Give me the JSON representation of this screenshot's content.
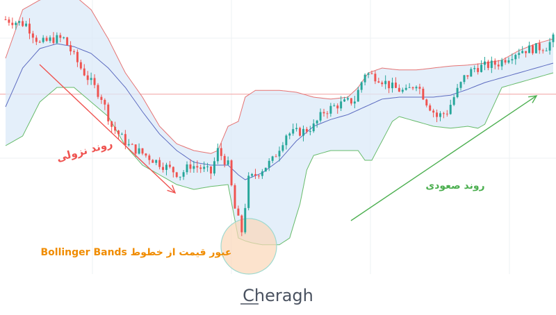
{
  "chart_data": {
    "type": "candlestick",
    "title": "",
    "xlabel": "",
    "ylabel": "",
    "grid": true,
    "ylim": [
      -245,
      30
    ],
    "colors": {
      "bullish": "#26a69a",
      "bearish": "#ef5350",
      "upper_band": "#e57373",
      "middle_band": "#5c6bc0",
      "lower_band": "#66bb6a",
      "band_fill": "#dbeaf8",
      "horizontal_line": "#f2a0a0",
      "downtrend_arrow": "#ef5350",
      "uptrend_arrow": "#4caf50",
      "annotation_text": "#f08c00",
      "circle_fill": "#fbd7b8",
      "circle_stroke": "#9fd9cf"
    },
    "horizontal_line_value": -67,
    "anchors": [
      [
        0,
        10
      ],
      [
        6,
        5
      ],
      [
        10,
        -15
      ],
      [
        14,
        -10
      ],
      [
        17,
        -10
      ],
      [
        22,
        -40
      ],
      [
        28,
        -70
      ],
      [
        31,
        -100
      ],
      [
        36,
        -120
      ],
      [
        41,
        -130
      ],
      [
        46,
        -140
      ],
      [
        51,
        -150
      ],
      [
        54,
        -140
      ],
      [
        57,
        -143
      ],
      [
        60,
        -148
      ],
      [
        62,
        -125
      ],
      [
        65,
        -140
      ],
      [
        67,
        -185
      ],
      [
        69,
        -208
      ],
      [
        71,
        -155
      ],
      [
        73,
        -150
      ],
      [
        78,
        -135
      ],
      [
        82,
        -108
      ],
      [
        87,
        -105
      ],
      [
        90,
        -100
      ],
      [
        93,
        -85
      ],
      [
        97,
        -78
      ],
      [
        102,
        -73
      ],
      [
        105,
        -45
      ],
      [
        109,
        -50
      ],
      [
        113,
        -60
      ],
      [
        117,
        -65
      ],
      [
        120,
        -55
      ],
      [
        123,
        -75
      ],
      [
        126,
        -90
      ],
      [
        129,
        -85
      ],
      [
        131,
        -70
      ],
      [
        134,
        -50
      ],
      [
        137,
        -40
      ],
      [
        140,
        -38
      ],
      [
        144,
        -35
      ],
      [
        147,
        -28
      ],
      [
        150,
        -22
      ],
      [
        154,
        -20
      ],
      [
        158,
        -18
      ],
      [
        160,
        -10
      ]
    ],
    "candle_count": 161,
    "upper_band": [
      [
        0,
        -30
      ],
      [
        5,
        20
      ],
      [
        10,
        30
      ],
      [
        15,
        35
      ],
      [
        20,
        35
      ],
      [
        25,
        20
      ],
      [
        30,
        -10
      ],
      [
        35,
        -45
      ],
      [
        40,
        -70
      ],
      [
        45,
        -100
      ],
      [
        50,
        -118
      ],
      [
        55,
        -125
      ],
      [
        60,
        -128
      ],
      [
        62,
        -125
      ],
      [
        65,
        -100
      ],
      [
        68,
        -95
      ],
      [
        70,
        -70
      ],
      [
        73,
        -63
      ],
      [
        75,
        -63
      ],
      [
        80,
        -63
      ],
      [
        85,
        -65
      ],
      [
        90,
        -70
      ],
      [
        95,
        -72
      ],
      [
        100,
        -70
      ],
      [
        103,
        -60
      ],
      [
        106,
        -45
      ],
      [
        110,
        -40
      ],
      [
        115,
        -42
      ],
      [
        120,
        -42
      ],
      [
        125,
        -40
      ],
      [
        130,
        -38
      ],
      [
        135,
        -37
      ],
      [
        140,
        -35
      ],
      [
        145,
        -32
      ],
      [
        150,
        -22
      ],
      [
        155,
        -15
      ],
      [
        160,
        -10
      ]
    ],
    "middle_band": [
      [
        0,
        -80
      ],
      [
        5,
        -40
      ],
      [
        10,
        -20
      ],
      [
        15,
        -15
      ],
      [
        20,
        -18
      ],
      [
        25,
        -25
      ],
      [
        30,
        -40
      ],
      [
        35,
        -60
      ],
      [
        40,
        -85
      ],
      [
        45,
        -108
      ],
      [
        50,
        -125
      ],
      [
        55,
        -137
      ],
      [
        60,
        -140
      ],
      [
        65,
        -140
      ],
      [
        68,
        -150
      ],
      [
        70,
        -155
      ],
      [
        75,
        -148
      ],
      [
        80,
        -135
      ],
      [
        85,
        -115
      ],
      [
        90,
        -100
      ],
      [
        95,
        -93
      ],
      [
        100,
        -88
      ],
      [
        105,
        -80
      ],
      [
        110,
        -72
      ],
      [
        115,
        -70
      ],
      [
        120,
        -70
      ],
      [
        125,
        -70
      ],
      [
        130,
        -68
      ],
      [
        135,
        -62
      ],
      [
        140,
        -55
      ],
      [
        145,
        -50
      ],
      [
        150,
        -45
      ],
      [
        155,
        -40
      ],
      [
        160,
        -35
      ]
    ],
    "lower_band": [
      [
        0,
        -120
      ],
      [
        5,
        -110
      ],
      [
        10,
        -75
      ],
      [
        15,
        -60
      ],
      [
        20,
        -60
      ],
      [
        25,
        -75
      ],
      [
        30,
        -90
      ],
      [
        35,
        -120
      ],
      [
        40,
        -140
      ],
      [
        45,
        -150
      ],
      [
        50,
        -160
      ],
      [
        55,
        -165
      ],
      [
        60,
        -162
      ],
      [
        65,
        -160
      ],
      [
        68,
        -215
      ],
      [
        70,
        -218
      ],
      [
        72,
        -220
      ],
      [
        75,
        -222
      ],
      [
        78,
        -222
      ],
      [
        80,
        -222
      ],
      [
        83,
        -215
      ],
      [
        86,
        -180
      ],
      [
        88,
        -145
      ],
      [
        90,
        -130
      ],
      [
        95,
        -125
      ],
      [
        100,
        -125
      ],
      [
        103,
        -125
      ],
      [
        105,
        -135
      ],
      [
        107,
        -135
      ],
      [
        110,
        -115
      ],
      [
        113,
        -95
      ],
      [
        115,
        -90
      ],
      [
        120,
        -95
      ],
      [
        125,
        -100
      ],
      [
        130,
        -102
      ],
      [
        135,
        -100
      ],
      [
        138,
        -102
      ],
      [
        140,
        -98
      ],
      [
        145,
        -60
      ],
      [
        150,
        -55
      ],
      [
        155,
        -50
      ],
      [
        160,
        -45
      ]
    ],
    "annotations": [
      {
        "text": "روند نزولی",
        "color": "#ef5350"
      },
      {
        "text": "روند صعودی",
        "color": "#4caf50"
      },
      {
        "text": "عبور قیمت از خطوط Bollinger Bands",
        "color": "#f08c00"
      }
    ]
  },
  "watermark": "Cheragh"
}
